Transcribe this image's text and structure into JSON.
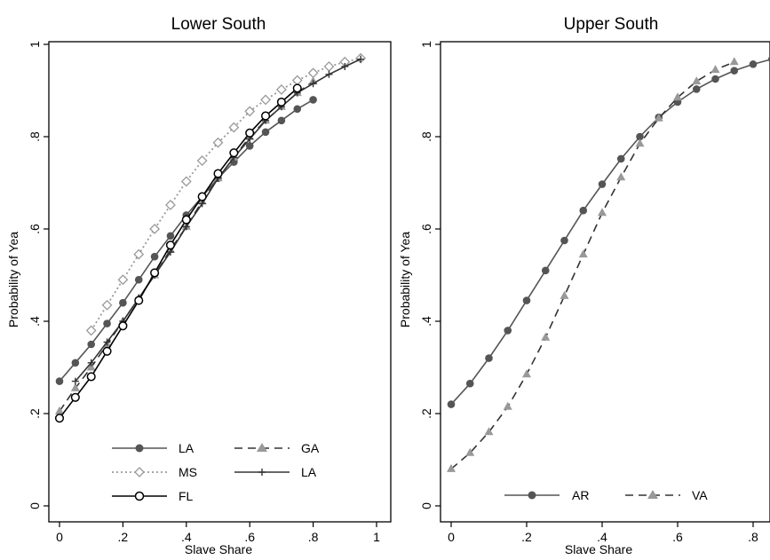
{
  "chart_data": [
    {
      "type": "line",
      "title": "Lower South",
      "xlabel": "Slave Share",
      "ylabel": "Probability of Yea",
      "xlim": [
        0,
        1
      ],
      "ylim": [
        0,
        1
      ],
      "xticks": [
        "0",
        ".2",
        ".4",
        ".6",
        ".8",
        "1"
      ],
      "yticks": [
        "0",
        ".2",
        ".4",
        ".6",
        ".8",
        "1"
      ],
      "grid": false,
      "legend_position": "bottom",
      "series": [
        {
          "name": "LA",
          "style": "solid",
          "marker": "filled-circle",
          "color": "#555555",
          "x": [
            0,
            0.05,
            0.1,
            0.15,
            0.2,
            0.25,
            0.3,
            0.35,
            0.4,
            0.45,
            0.5,
            0.55,
            0.6,
            0.65,
            0.7,
            0.75,
            0.8
          ],
          "y": [
            0.27,
            0.31,
            0.35,
            0.395,
            0.44,
            0.49,
            0.54,
            0.585,
            0.63,
            0.67,
            0.71,
            0.745,
            0.78,
            0.81,
            0.835,
            0.86,
            0.88
          ]
        },
        {
          "name": "GA",
          "style": "dash",
          "marker": "triangle",
          "color": "#999999",
          "x": [
            0,
            0.05,
            0.1,
            0.15,
            0.2,
            0.25,
            0.3,
            0.35,
            0.4,
            0.45,
            0.5,
            0.55,
            0.6,
            0.65,
            0.7,
            0.75,
            0.8
          ],
          "y": [
            0.205,
            0.255,
            0.3,
            0.35,
            0.4,
            0.45,
            0.5,
            0.555,
            0.605,
            0.66,
            0.71,
            0.755,
            0.8,
            0.835,
            0.865,
            0.895,
            0.92
          ]
        },
        {
          "name": "MS",
          "style": "dot",
          "marker": "hollow-diamond",
          "color": "#999999",
          "x": [
            0.1,
            0.15,
            0.2,
            0.25,
            0.3,
            0.35,
            0.4,
            0.45,
            0.5,
            0.55,
            0.6,
            0.65,
            0.7,
            0.75,
            0.8,
            0.85,
            0.9,
            0.95
          ],
          "y": [
            0.38,
            0.435,
            0.49,
            0.545,
            0.6,
            0.652,
            0.703,
            0.748,
            0.787,
            0.82,
            0.855,
            0.88,
            0.902,
            0.922,
            0.938,
            0.952,
            0.962,
            0.97
          ]
        },
        {
          "name": "LA",
          "style": "solid",
          "marker": "plus",
          "color": "#333333",
          "x": [
            0.05,
            0.1,
            0.15,
            0.2,
            0.25,
            0.3,
            0.35,
            0.4,
            0.45,
            0.5,
            0.55,
            0.6,
            0.65,
            0.7,
            0.75,
            0.8,
            0.85,
            0.9,
            0.95
          ],
          "y": [
            0.27,
            0.31,
            0.355,
            0.4,
            0.45,
            0.5,
            0.55,
            0.605,
            0.655,
            0.71,
            0.755,
            0.795,
            0.835,
            0.865,
            0.895,
            0.915,
            0.935,
            0.952,
            0.968
          ]
        },
        {
          "name": "FL",
          "style": "solid",
          "marker": "hollow-circle",
          "color": "#000000",
          "x": [
            0,
            0.05,
            0.1,
            0.15,
            0.2,
            0.25,
            0.3,
            0.35,
            0.4,
            0.45,
            0.5,
            0.55,
            0.6,
            0.65,
            0.7,
            0.75
          ],
          "y": [
            0.19,
            0.235,
            0.28,
            0.335,
            0.39,
            0.445,
            0.505,
            0.565,
            0.62,
            0.67,
            0.72,
            0.765,
            0.808,
            0.845,
            0.875,
            0.905
          ]
        }
      ]
    },
    {
      "type": "line",
      "title": "Upper South",
      "xlabel": "Slave Share",
      "ylabel": "Probability of Yea",
      "xlim": [
        0,
        0.9
      ],
      "ylim": [
        0,
        1
      ],
      "xticks": [
        "0",
        ".2",
        ".4",
        ".6",
        ".8"
      ],
      "yticks": [
        "0",
        ".2",
        ".4",
        ".6",
        ".8",
        "1"
      ],
      "grid": false,
      "legend_position": "bottom",
      "series": [
        {
          "name": "AR",
          "style": "solid",
          "marker": "filled-circle",
          "color": "#555555",
          "x": [
            0,
            0.05,
            0.1,
            0.15,
            0.2,
            0.25,
            0.3,
            0.35,
            0.4,
            0.45,
            0.5,
            0.55,
            0.6,
            0.65,
            0.7,
            0.75,
            0.8,
            0.85,
            0.9
          ],
          "y": [
            0.22,
            0.265,
            0.32,
            0.38,
            0.445,
            0.51,
            0.575,
            0.64,
            0.697,
            0.752,
            0.8,
            0.842,
            0.875,
            0.903,
            0.925,
            0.943,
            0.957,
            0.968,
            0.975
          ]
        },
        {
          "name": "VA",
          "style": "dash",
          "marker": "triangle",
          "color": "#999999",
          "x": [
            0,
            0.05,
            0.1,
            0.15,
            0.2,
            0.25,
            0.3,
            0.35,
            0.4,
            0.45,
            0.5,
            0.55,
            0.6,
            0.65,
            0.7,
            0.75
          ],
          "y": [
            0.08,
            0.115,
            0.16,
            0.215,
            0.285,
            0.365,
            0.455,
            0.545,
            0.635,
            0.712,
            0.785,
            0.84,
            0.885,
            0.92,
            0.945,
            0.962
          ]
        }
      ]
    }
  ]
}
